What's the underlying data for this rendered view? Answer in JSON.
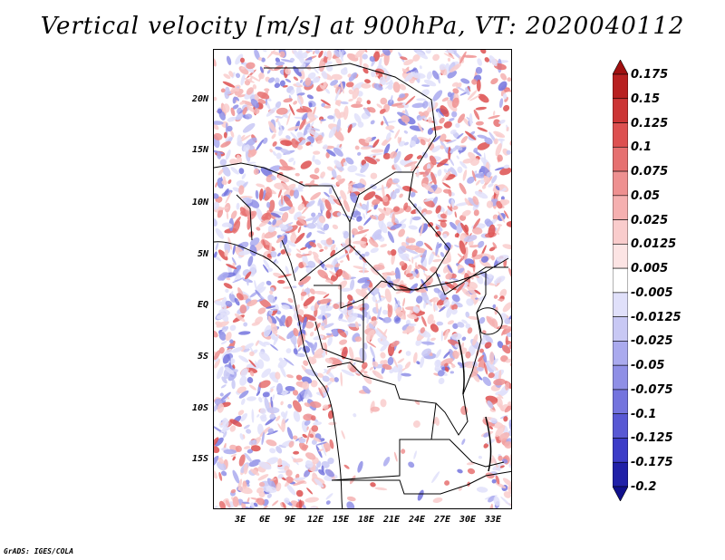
{
  "title": "Vertical velocity [m/s] at 900hPa, VT: 2020040112",
  "map": {
    "lat_labels": [
      "20N",
      "15N",
      "10N",
      "5N",
      "EQ",
      "5S",
      "10S",
      "15S"
    ],
    "lon_labels": [
      "3E",
      "6E",
      "9E",
      "12E",
      "15E",
      "18E",
      "21E",
      "24E",
      "27E",
      "30E",
      "33E"
    ]
  },
  "colorbar": {
    "labels": [
      "0.175",
      "0.15",
      "0.125",
      "0.1",
      "0.075",
      "0.05",
      "0.025",
      "0.0125",
      "0.005",
      "-0.005",
      "-0.0125",
      "-0.025",
      "-0.05",
      "-0.075",
      "-0.1",
      "-0.125",
      "-0.175",
      "-0.2"
    ],
    "colors": [
      "#a01010",
      "#b82020",
      "#cc3535",
      "#dd5050",
      "#e67070",
      "#ee9090",
      "#f5b0b0",
      "#f9cccc",
      "#fce4e4",
      "#ffffff",
      "#e0e0fa",
      "#c8c8f4",
      "#aaaaee",
      "#8f8fe6",
      "#7474de",
      "#5858d4",
      "#3c3cc8",
      "#2020a8",
      "#10108c"
    ]
  },
  "credit": "GrADS: IGES/COLA"
}
